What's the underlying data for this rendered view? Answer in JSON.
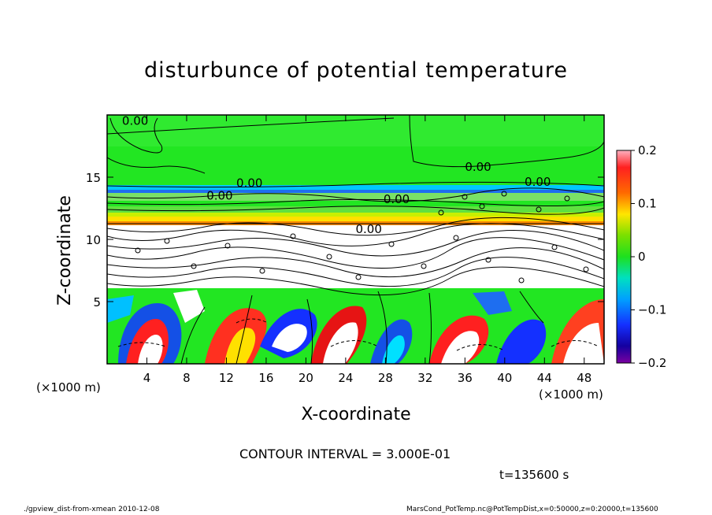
{
  "title": "disturbunce of potential temperature",
  "chart_data": {
    "type": "heatmap",
    "title": "disturbunce of potential temperature",
    "xlabel": "X-coordinate",
    "ylabel": "Z-coordinate",
    "x_unit": "(×1000 m)",
    "y_unit": "(×1000 m)",
    "xlim": [
      0,
      50
    ],
    "ylim": [
      0,
      20
    ],
    "x_ticks": [
      "4",
      "8",
      "12",
      "16",
      "20",
      "24",
      "28",
      "32",
      "36",
      "40",
      "44",
      "48"
    ],
    "y_ticks": [
      "5",
      "10",
      "15"
    ],
    "colorbar_ticks": [
      "0.2",
      "0.1",
      "0",
      "−0.1",
      "−0.2"
    ],
    "color_range": [
      -0.2,
      0.2
    ],
    "contour_labels": [
      "0.00",
      "0.00",
      "0.00",
      "0.00",
      "0.00",
      "0.00",
      "0.00"
    ],
    "contour_interval": "CONTOUR INTERVAL = 3.000E-01",
    "time": "t=135600 s"
  },
  "footer": {
    "left": "./gpview_dist-from-xmean  2010-12-08",
    "right": "MarsCond_PotTemp.nc@PotTempDist,x=0:50000,z=0:20000,t=135600"
  },
  "colors": {
    "green": "#22e622",
    "red": "#e61414",
    "blue": "#1450e6",
    "white": "#ffffff"
  }
}
